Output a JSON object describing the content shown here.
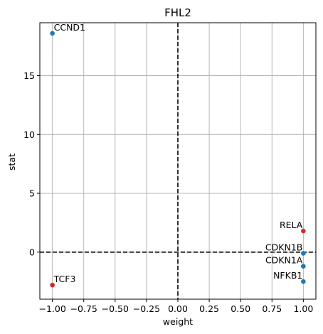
{
  "chart_data": {
    "type": "scatter",
    "title": "FHL2",
    "xlabel": "weight",
    "ylabel": "stat",
    "xlim": [
      -1.1,
      1.1
    ],
    "ylim": [
      -4.0,
      19.5
    ],
    "xticks": [
      -1.0,
      -0.75,
      -0.5,
      -0.25,
      0.0,
      0.25,
      0.5,
      0.75,
      1.0
    ],
    "xtick_labels": [
      "−1.00",
      "−0.75",
      "−0.50",
      "−0.25",
      "0.00",
      "0.25",
      "0.50",
      "0.75",
      "1.00"
    ],
    "yticks": [
      0,
      5,
      10,
      15
    ],
    "ytick_labels": [
      "0",
      "5",
      "10",
      "15"
    ],
    "grid": true,
    "reference_lines": {
      "x": 0,
      "y": 0,
      "style": "dashed",
      "color": "#000000"
    },
    "colors": {
      "positive": "#d62728",
      "negative": "#1f77b4"
    },
    "points": [
      {
        "label": "CCND1",
        "x": -1.0,
        "y": 18.6,
        "color": "#1f77b4",
        "anchor": "start"
      },
      {
        "label": "TCF3",
        "x": -1.0,
        "y": -2.8,
        "color": "#d62728",
        "anchor": "start"
      },
      {
        "label": "RELA",
        "x": 1.0,
        "y": 1.8,
        "color": "#d62728",
        "anchor": "end"
      },
      {
        "label": "CDKN1B",
        "x": 1.0,
        "y": -0.1,
        "color": "#1f77b4",
        "anchor": "end"
      },
      {
        "label": "CDKN1A",
        "x": 1.0,
        "y": -1.2,
        "color": "#1f77b4",
        "anchor": "end"
      },
      {
        "label": "NFKB1",
        "x": 1.0,
        "y": -2.5,
        "color": "#1f77b4",
        "anchor": "end"
      }
    ]
  }
}
